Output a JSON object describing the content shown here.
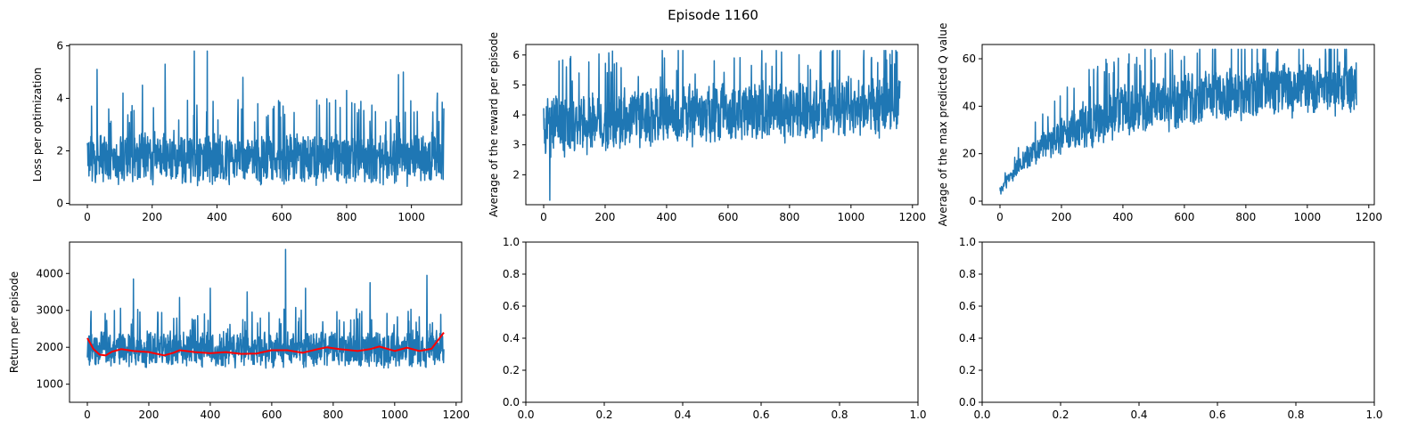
{
  "figure": {
    "title": "Episode 1160"
  },
  "colors": {
    "series": "#1f77b4",
    "smooth": "#ff0000",
    "axes": "#000000",
    "background": "#ffffff"
  },
  "chart_data": [
    {
      "id": "loss",
      "type": "line",
      "title": "",
      "xlabel": "",
      "ylabel": "Loss per optimization",
      "xlim": [
        -55,
        1155
      ],
      "ylim": [
        -0.05,
        6.05
      ],
      "xticks": [
        0,
        200,
        400,
        600,
        800,
        1000
      ],
      "yticks": [
        0,
        2,
        4,
        6
      ],
      "grid": false,
      "series": [
        {
          "style": "noisy-line",
          "color": "#1f77b4",
          "x_range": [
            0,
            1100
          ],
          "num_points": 1101,
          "baseline": [
            [
              0,
              1.7
            ],
            [
              1100,
              1.7
            ]
          ],
          "amplitude": [
            [
              0,
              1.1
            ],
            [
              1100,
              1.1
            ]
          ],
          "clip": [
            0.3,
            5.85
          ],
          "spikes": [
            [
              30,
              5.1
            ],
            [
              110,
              4.2
            ],
            [
              170,
              4.5
            ],
            [
              240,
              5.3
            ],
            [
              330,
              5.8
            ],
            [
              370,
              5.8
            ],
            [
              480,
              4.8
            ],
            [
              800,
              4.3
            ],
            [
              960,
              4.9
            ],
            [
              975,
              5.0
            ],
            [
              1080,
              4.2
            ]
          ]
        }
      ]
    },
    {
      "id": "reward",
      "type": "line",
      "title": "",
      "xlabel": "",
      "ylabel": "Average of the reward per episode",
      "xlim": [
        -58,
        1218
      ],
      "ylim": [
        1.0,
        6.35
      ],
      "xticks": [
        0,
        200,
        400,
        600,
        800,
        1000,
        1200
      ],
      "yticks": [
        2,
        3,
        4,
        5,
        6
      ],
      "grid": false,
      "series": [
        {
          "style": "noisy-line",
          "color": "#1f77b4",
          "x_range": [
            0,
            1160
          ],
          "num_points": 1161,
          "baseline": [
            [
              0,
              3.6
            ],
            [
              300,
              3.9
            ],
            [
              1160,
              4.3
            ]
          ],
          "amplitude": [
            [
              0,
              1.1
            ],
            [
              1160,
              1.1
            ]
          ],
          "clip": [
            1.15,
            6.15
          ],
          "spikes": [
            [
              20,
              1.15
            ],
            [
              50,
              5.8
            ],
            [
              620,
              5.9
            ],
            [
              900,
              6.1
            ],
            [
              1150,
              6.1
            ]
          ]
        }
      ]
    },
    {
      "id": "qvalue",
      "type": "line",
      "title": "",
      "xlabel": "",
      "ylabel": "Average of the max predicted Q value",
      "xlim": [
        -58,
        1218
      ],
      "ylim": [
        -1.5,
        66
      ],
      "xticks": [
        0,
        200,
        400,
        600,
        800,
        1000,
        1200
      ],
      "yticks": [
        0,
        20,
        40,
        60
      ],
      "grid": false,
      "series": [
        {
          "style": "noisy-line",
          "color": "#1f77b4",
          "x_range": [
            0,
            1160
          ],
          "num_points": 1161,
          "baseline": [
            [
              0,
              4
            ],
            [
              50,
              13
            ],
            [
              100,
              20
            ],
            [
              200,
              28
            ],
            [
              300,
              33
            ],
            [
              400,
              38
            ],
            [
              600,
              42
            ],
            [
              800,
              46
            ],
            [
              1000,
              48
            ],
            [
              1160,
              48
            ]
          ],
          "amplitude": [
            [
              0,
              2
            ],
            [
              100,
              6
            ],
            [
              300,
              12
            ],
            [
              1160,
              13
            ]
          ],
          "clip": [
            2,
            64
          ],
          "spikes": [
            [
              420,
              62
            ],
            [
              600,
              61
            ],
            [
              820,
              64
            ],
            [
              900,
              63
            ],
            [
              1060,
              62
            ]
          ]
        }
      ]
    },
    {
      "id": "return",
      "type": "line",
      "title": "",
      "xlabel": "",
      "ylabel": "Return per episode",
      "xlim": [
        -58,
        1218
      ],
      "ylim": [
        510,
        4850
      ],
      "xticks": [
        0,
        200,
        400,
        600,
        800,
        1000,
        1200
      ],
      "yticks": [
        1000,
        2000,
        3000,
        4000
      ],
      "grid": false,
      "series": [
        {
          "style": "noisy-line",
          "color": "#1f77b4",
          "x_range": [
            0,
            1160
          ],
          "num_points": 1161,
          "baseline": [
            [
              0,
              1950
            ],
            [
              1160,
              1950
            ]
          ],
          "amplitude": [
            [
              0,
              550
            ],
            [
              1160,
              550
            ]
          ],
          "clip": [
            650,
            4650
          ],
          "spikes": [
            [
              150,
              3850
            ],
            [
              300,
              3350
            ],
            [
              400,
              3600
            ],
            [
              520,
              3500
            ],
            [
              645,
              4650
            ],
            [
              710,
              3600
            ],
            [
              920,
              3750
            ],
            [
              1105,
              3950
            ]
          ]
        },
        {
          "style": "line",
          "color": "#ff0000",
          "points": [
            [
              0,
              2250
            ],
            [
              20,
              1950
            ],
            [
              40,
              1800
            ],
            [
              60,
              1780
            ],
            [
              80,
              1880
            ],
            [
              110,
              1950
            ],
            [
              150,
              1900
            ],
            [
              200,
              1870
            ],
            [
              250,
              1780
            ],
            [
              280,
              1850
            ],
            [
              300,
              1920
            ],
            [
              350,
              1870
            ],
            [
              400,
              1840
            ],
            [
              450,
              1870
            ],
            [
              500,
              1820
            ],
            [
              550,
              1830
            ],
            [
              600,
              1920
            ],
            [
              650,
              1920
            ],
            [
              700,
              1850
            ],
            [
              750,
              1950
            ],
            [
              780,
              2000
            ],
            [
              820,
              1950
            ],
            [
              880,
              1900
            ],
            [
              920,
              1950
            ],
            [
              950,
              2020
            ],
            [
              1000,
              1900
            ],
            [
              1040,
              1990
            ],
            [
              1080,
              1900
            ],
            [
              1120,
              1960
            ],
            [
              1160,
              2400
            ]
          ]
        }
      ]
    },
    {
      "id": "empty1",
      "type": "line",
      "title": "",
      "xlabel": "",
      "ylabel": "",
      "xlim": [
        0,
        1
      ],
      "ylim": [
        0,
        1
      ],
      "xticks": [
        0.0,
        0.2,
        0.4,
        0.6,
        0.8,
        1.0
      ],
      "yticks": [
        0.0,
        0.2,
        0.4,
        0.6,
        0.8,
        1.0
      ],
      "tick_labels_x": [
        "0.0",
        "0.2",
        "0.4",
        "0.6",
        "0.8",
        "1.0"
      ],
      "tick_labels_y": [
        "0.0",
        "0.2",
        "0.4",
        "0.6",
        "0.8",
        "1.0"
      ],
      "grid": false,
      "series": []
    },
    {
      "id": "empty2",
      "type": "line",
      "title": "",
      "xlabel": "",
      "ylabel": "",
      "xlim": [
        0,
        1
      ],
      "ylim": [
        0,
        1
      ],
      "xticks": [
        0.0,
        0.2,
        0.4,
        0.6,
        0.8,
        1.0
      ],
      "yticks": [
        0.0,
        0.2,
        0.4,
        0.6,
        0.8,
        1.0
      ],
      "tick_labels_x": [
        "0.0",
        "0.2",
        "0.4",
        "0.6",
        "0.8",
        "1.0"
      ],
      "tick_labels_y": [
        "0.0",
        "0.2",
        "0.4",
        "0.6",
        "0.8",
        "1.0"
      ],
      "grid": false,
      "series": []
    }
  ]
}
